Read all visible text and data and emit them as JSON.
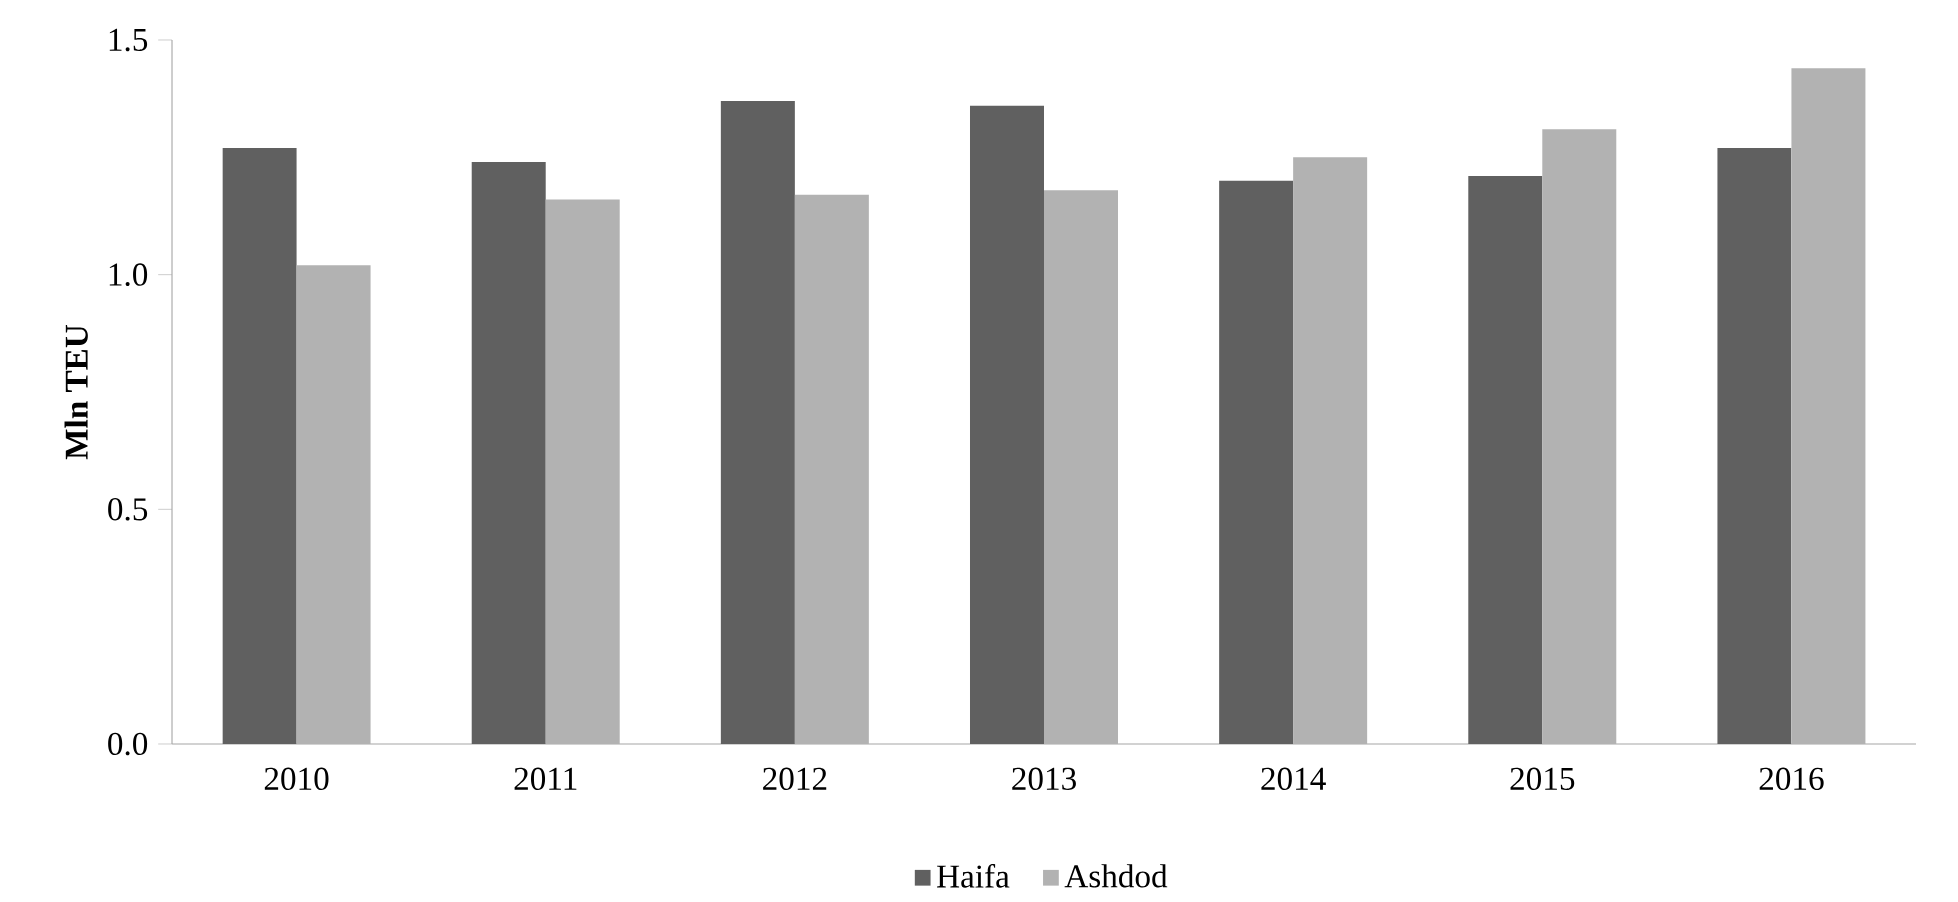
{
  "chart_data": {
    "type": "bar",
    "ylabel": "Mln TEU",
    "categories": [
      "2010",
      "2011",
      "2012",
      "2013",
      "2014",
      "2015",
      "2016"
    ],
    "series": [
      {
        "name": "Haifa",
        "color": "#606060",
        "values": [
          1.27,
          1.24,
          1.37,
          1.36,
          1.2,
          1.21,
          1.27
        ]
      },
      {
        "name": "Ashdod",
        "color": "#b2b2b2",
        "values": [
          1.02,
          1.16,
          1.17,
          1.18,
          1.25,
          1.31,
          1.44
        ]
      }
    ],
    "ylim": [
      0,
      1.5
    ],
    "yticks": [
      {
        "value": 0,
        "label": "0.0"
      },
      {
        "value": 0.5,
        "label": "0.5"
      },
      {
        "value": 1,
        "label": "1.0"
      },
      {
        "value": 1.5,
        "label": "1.5"
      }
    ],
    "grid": false,
    "legend": "bottom"
  }
}
